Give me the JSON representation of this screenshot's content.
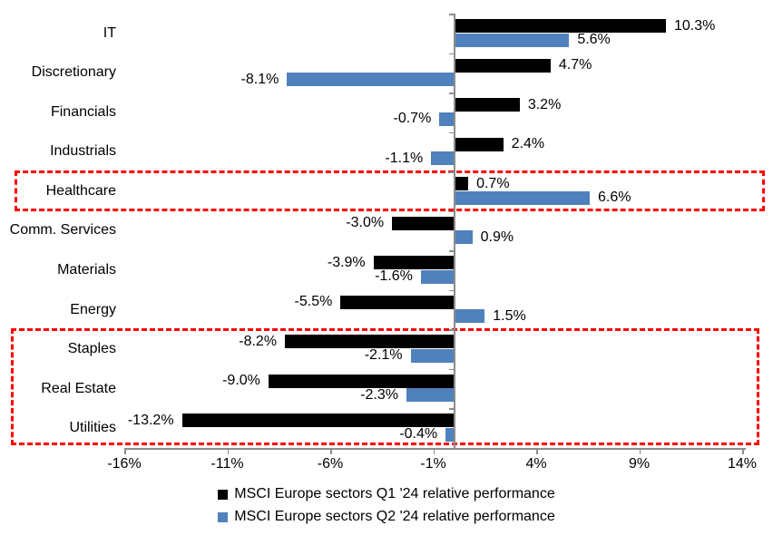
{
  "chart_data": {
    "type": "bar",
    "orientation": "horizontal",
    "title": "",
    "categories": [
      "IT",
      "Discretionary",
      "Financials",
      "Industrials",
      "Healthcare",
      "Comm. Services",
      "Materials",
      "Energy",
      "Staples",
      "Real Estate",
      "Utilities"
    ],
    "series": [
      {
        "name": "MSCI Europe sectors Q1 '24 relative performance",
        "color": "#000000",
        "values": [
          10.3,
          4.7,
          3.2,
          2.4,
          0.7,
          -3.0,
          -3.9,
          -5.5,
          -8.2,
          -9.0,
          -13.2
        ],
        "labels": [
          "10.3%",
          "4.7%",
          "3.2%",
          "2.4%",
          "0.7%",
          "-3.0%",
          "-3.9%",
          "-5.5%",
          "-8.2%",
          "-9.0%",
          "-13.2%"
        ]
      },
      {
        "name": "MSCI Europe sectors Q2 '24 relative performance",
        "color": "#4F81BD",
        "values": [
          5.6,
          -8.1,
          -0.7,
          -1.1,
          6.6,
          0.9,
          -1.6,
          1.5,
          -2.1,
          -2.3,
          -0.4
        ],
        "labels": [
          "5.6%",
          "-8.1%",
          "-0.7%",
          "-1.1%",
          "6.6%",
          "0.9%",
          "-1.6%",
          "1.5%",
          "-2.1%",
          "-2.3%",
          "-0.4%"
        ]
      }
    ],
    "x_axis": {
      "min": -16,
      "max": 14,
      "tick_interval": 5,
      "ticks": [
        {
          "label": "-16%",
          "value": -16
        },
        {
          "label": "-11%",
          "value": -11
        },
        {
          "label": "-6%",
          "value": -6
        },
        {
          "label": "-1%",
          "value": -1
        },
        {
          "label": "4%",
          "value": 4
        },
        {
          "label": "9%",
          "value": 9
        },
        {
          "label": "14%",
          "value": 14
        }
      ]
    },
    "grid": false,
    "legend_position": "bottom",
    "highlight_boxes": [
      {
        "categories": [
          "Healthcare"
        ],
        "color": "#FF0000",
        "style": "dashed"
      },
      {
        "categories": [
          "Staples",
          "Real Estate",
          "Utilities"
        ],
        "color": "#FF0000",
        "style": "dashed"
      }
    ]
  },
  "colors": {
    "q1_bar": "#000000",
    "q2_bar": "#4F81BD",
    "highlight": "#FF0000",
    "axis": "#8C8C8C",
    "text": "#000000",
    "background": "#FFFFFF"
  }
}
